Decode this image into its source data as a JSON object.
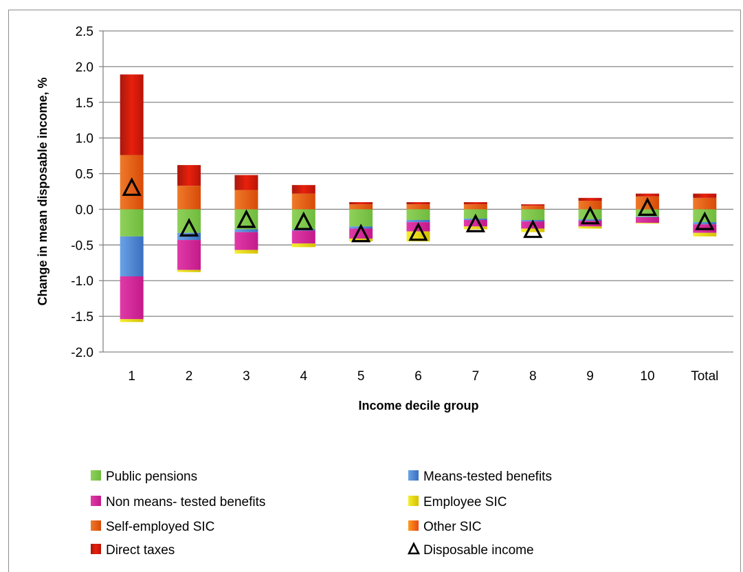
{
  "chart_data": {
    "type": "bar",
    "stacked": true,
    "xlabel": "Income decile group",
    "ylabel": "Change in mean disposable income, %",
    "ylim": [
      -2.0,
      2.5
    ],
    "yticks": [
      "2.5",
      "2.0",
      "1.5",
      "1.0",
      "0.5",
      "0.0",
      "-0.5",
      "-1.0",
      "-1.5",
      "-2.0"
    ],
    "ytick_values": [
      2.5,
      2.0,
      1.5,
      1.0,
      0.5,
      0.0,
      -0.5,
      -1.0,
      -1.5,
      -2.0
    ],
    "grid": true,
    "legend_position": "bottom",
    "categories": [
      "1",
      "2",
      "3",
      "4",
      "5",
      "6",
      "7",
      "8",
      "9",
      "10",
      "Total"
    ],
    "series": [
      {
        "name": "Public pensions",
        "color": "#7cc84b",
        "values": [
          -0.38,
          -0.33,
          -0.28,
          -0.28,
          -0.24,
          -0.15,
          -0.13,
          -0.15,
          -0.14,
          -0.1,
          -0.18
        ]
      },
      {
        "name": "Means-tested benefits",
        "color": "#4f86d0",
        "values": [
          -0.56,
          -0.1,
          -0.04,
          -0.02,
          -0.03,
          -0.03,
          -0.02,
          -0.02,
          -0.02,
          -0.01,
          -0.03
        ]
      },
      {
        "name": "Non means- tested benefits",
        "color": "#d9239b",
        "values": [
          -0.6,
          -0.42,
          -0.25,
          -0.18,
          -0.14,
          -0.13,
          -0.09,
          -0.1,
          -0.08,
          -0.08,
          -0.12
        ]
      },
      {
        "name": "Employee SIC",
        "color": "#e8e000",
        "values": [
          -0.04,
          -0.03,
          -0.05,
          -0.05,
          -0.04,
          -0.14,
          -0.04,
          -0.05,
          -0.03,
          -0.01,
          -0.05
        ]
      },
      {
        "name": "Self-employed SIC",
        "color": "#e25d10",
        "values": [
          0.76,
          0.33,
          0.27,
          0.22,
          0.07,
          0.07,
          0.07,
          0.05,
          0.12,
          0.18,
          0.16
        ]
      },
      {
        "name": "Other SIC",
        "color": "#f26a10",
        "values": [
          0.0,
          0.0,
          0.0,
          0.0,
          0.0,
          0.0,
          0.0,
          0.0,
          0.0,
          0.0,
          0.0
        ]
      },
      {
        "name": "Direct taxes",
        "color": "#c0140a",
        "values": [
          1.13,
          0.29,
          0.21,
          0.12,
          0.03,
          0.03,
          0.03,
          0.02,
          0.04,
          0.04,
          0.06
        ]
      }
    ],
    "markers": {
      "name": "Disposable income",
      "values": [
        0.3,
        -0.27,
        -0.15,
        -0.18,
        -0.35,
        -0.33,
        -0.21,
        -0.29,
        -0.1,
        0.02,
        -0.18
      ]
    }
  }
}
